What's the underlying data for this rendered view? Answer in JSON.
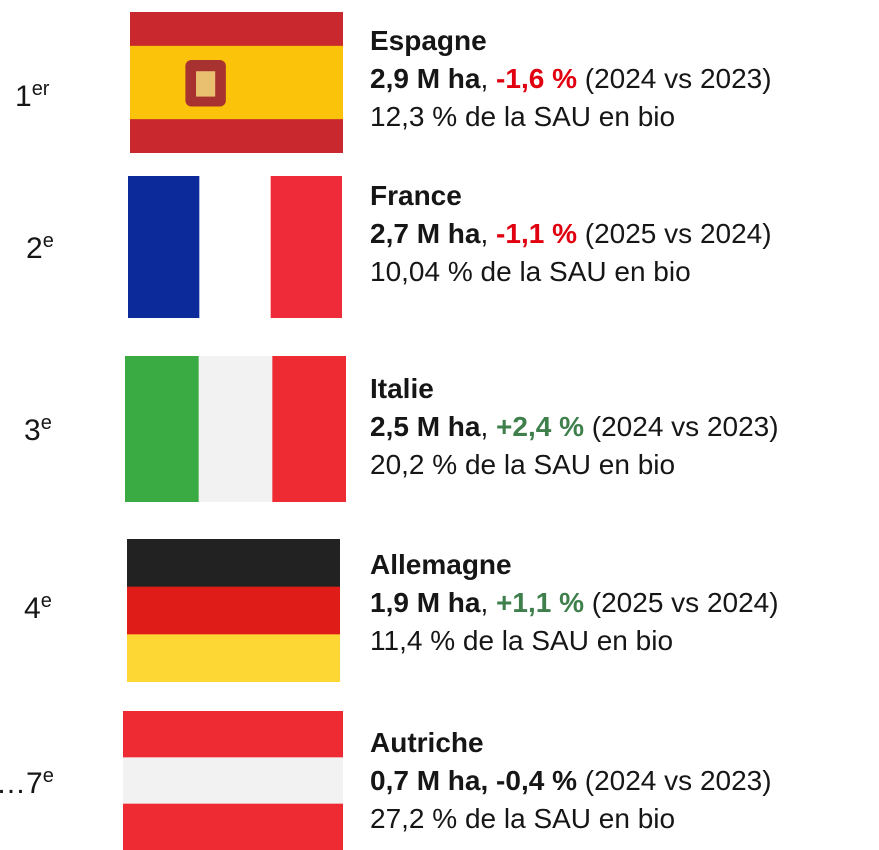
{
  "rows": [
    {
      "rank": "1",
      "rank_suffix": "er",
      "country": "Espagne",
      "area": "2,9 M ha",
      "separator": ",",
      "change": "-1,6 %",
      "change_color": "#e1000f",
      "period": "(2024 vs 2023)",
      "share": "12,3 % de la SAU en bio"
    },
    {
      "rank": "2",
      "rank_suffix": "e",
      "country": "France",
      "area": "2,7 M ha",
      "separator": ",",
      "change": "-1,1 %",
      "change_color": "#e1000f",
      "period": "(2025 vs 2024)",
      "share": "10,04 % de la SAU en bio"
    },
    {
      "rank": "3",
      "rank_suffix": "e",
      "country": "Italie",
      "area": "2,5 M ha",
      "separator": ",",
      "change": "+2,4 %",
      "change_color": "#3f7f4c",
      "period": "(2024 vs 2023)",
      "share": "20,2 % de la SAU en bio"
    },
    {
      "rank": "4",
      "rank_suffix": "e",
      "country": "Allemagne",
      "area": "1,9 M ha",
      "separator": ",",
      "change": "+1,1 %",
      "change_color": "#3f7f4c",
      "period": "(2025 vs 2024)",
      "share": "11,4 % de la SAU en bio"
    },
    {
      "rank": "…7",
      "rank_suffix": "e",
      "country": "Autriche",
      "area": "0,7 M ha",
      "separator": ",",
      "change": "-0,4 %",
      "change_color": "#161616",
      "period": "(2024 vs 2023)",
      "share": "27,2 % de la SAU en bio"
    }
  ]
}
